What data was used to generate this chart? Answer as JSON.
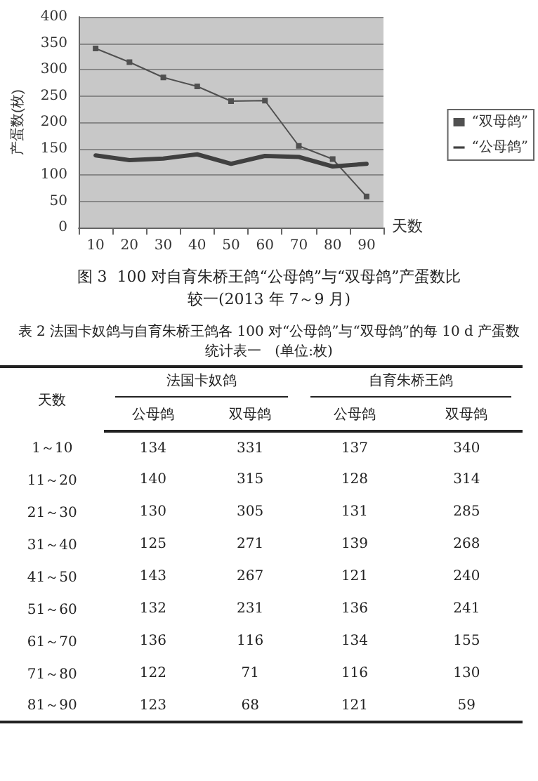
{
  "chart_data": [
    {
      "type": "line",
      "title": "图 3  100 对自育朱桥王鸽“公母鸽”与“双母鸽”产蛋数比较一(2013 年 7～9 月)",
      "xlabel": "天数",
      "ylabel": "产蛋数(枚)",
      "categories": [
        "10",
        "20",
        "30",
        "40",
        "50",
        "60",
        "70",
        "80",
        "90"
      ],
      "series": [
        {
          "name": "“双母鸽”",
          "color": "#505050",
          "marker": "square",
          "values": [
            340,
            314,
            285,
            268,
            240,
            241,
            155,
            130,
            59
          ]
        },
        {
          "name": "“公母鸽”",
          "color": "#404040",
          "marker": "none",
          "values": [
            137,
            128,
            131,
            139,
            121,
            136,
            134,
            116,
            121
          ]
        }
      ],
      "ylim": [
        0,
        400
      ],
      "yticks": [
        0,
        50,
        100,
        150,
        200,
        250,
        300,
        350,
        400
      ],
      "grid": "y",
      "legend": "right"
    },
    {
      "type": "other",
      "title": "表 2  法国卡奴鸽与自育朱桥王鸽各 100 对“公母鸽”与“双母鸽”的每 10 d 产蛋数统计表一",
      "subtitle": "(单位:枚)",
      "xlabel": "天数",
      "annotations": [
        "法国卡奴鸽",
        "自育朱桥王鸽"
      ],
      "categories": [
        "1～10",
        "11～20",
        "21～30",
        "31～40",
        "41～50",
        "51～60",
        "61～70",
        "71～80",
        "81～90"
      ],
      "series": [
        {
          "name": "公母鸽",
          "values": [
            134,
            140,
            130,
            125,
            143,
            132,
            136,
            122,
            123
          ]
        },
        {
          "name": "双母鸽",
          "values": [
            331,
            315,
            305,
            271,
            267,
            231,
            116,
            71,
            68
          ]
        },
        {
          "name": "公母鸽",
          "values": [
            137,
            128,
            131,
            139,
            121,
            136,
            134,
            116,
            121
          ]
        },
        {
          "name": "双母鸽",
          "values": [
            340,
            314,
            285,
            268,
            240,
            241,
            155,
            130,
            59
          ]
        }
      ],
      "data_labels": true
    }
  ]
}
